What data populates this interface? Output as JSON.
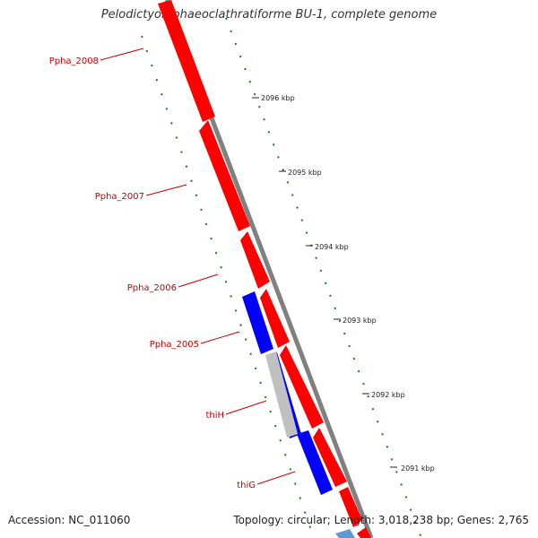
{
  "map": {
    "title": "Pelodictyon phaeoclathratiforme BU-1, complete genome",
    "accession": "Accession: NC_011060",
    "stats": "Topology: circular; Length: 3,018,238 bp; Genes: 2,765",
    "colors": {
      "forward_gene": "#ff0000",
      "reverse_gene": "#0000ff",
      "backbone": "#808080",
      "label": "#cc0000",
      "tick": "#1f7a1f",
      "light_blue": "#5b9bd5"
    }
  },
  "ticks": [
    "2096 kbp",
    "2095 kbp",
    "2094 kbp",
    "2093 kbp",
    "2092 kbp",
    "2091 kbp"
  ],
  "gene_labels": [
    "Ppha_2008",
    "Ppha_2007",
    "Ppha_2006",
    "Ppha_2005",
    "thiH",
    "thiG"
  ]
}
